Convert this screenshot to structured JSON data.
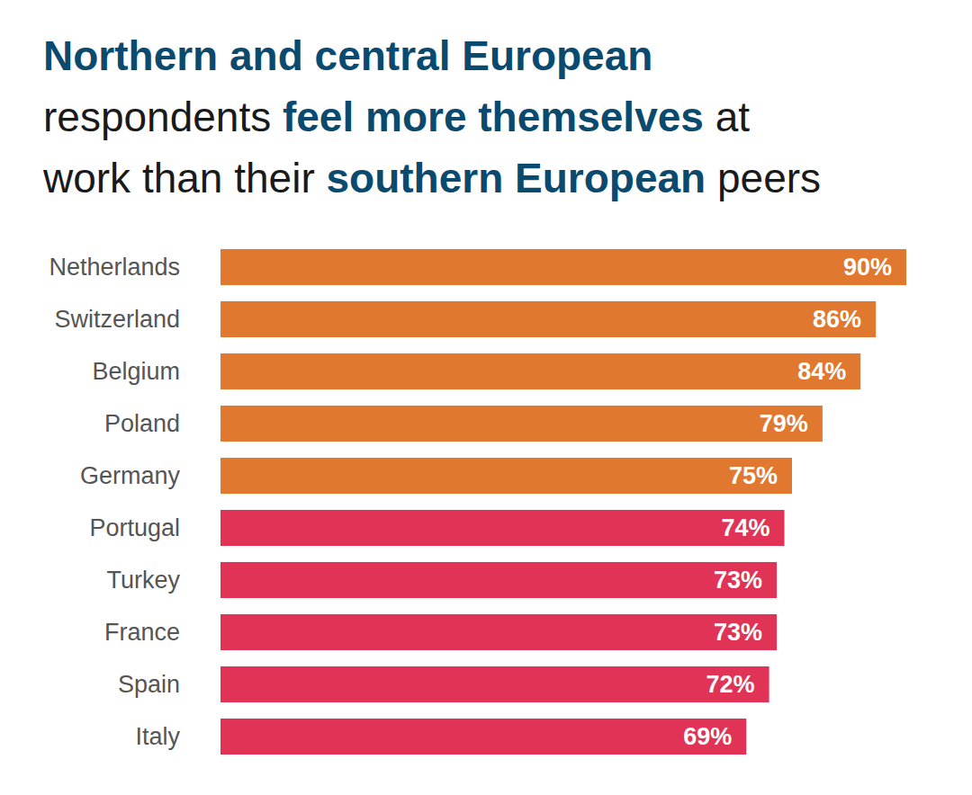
{
  "chart_data": {
    "type": "bar",
    "orientation": "horizontal",
    "title": "Northern and central European respondents feel more themselves at work than their southern European peers",
    "categories": [
      "Netherlands",
      "Switzerland",
      "Belgium",
      "Poland",
      "Germany",
      "Portugal",
      "Turkey",
      "France",
      "Spain",
      "Italy"
    ],
    "values": [
      90,
      86,
      84,
      79,
      75,
      74,
      73,
      73,
      72,
      69
    ],
    "value_labels": [
      "90%",
      "86%",
      "84%",
      "79%",
      "75%",
      "74%",
      "73%",
      "73%",
      "72%",
      "69%"
    ],
    "colors": [
      "#e07830",
      "#e07830",
      "#e07830",
      "#e07830",
      "#e07830",
      "#e03355",
      "#e03355",
      "#e03355",
      "#e03355",
      "#e03355"
    ],
    "xlim": [
      0,
      90
    ],
    "data_labels": true,
    "tick_labels": "y",
    "grid": false
  }
}
